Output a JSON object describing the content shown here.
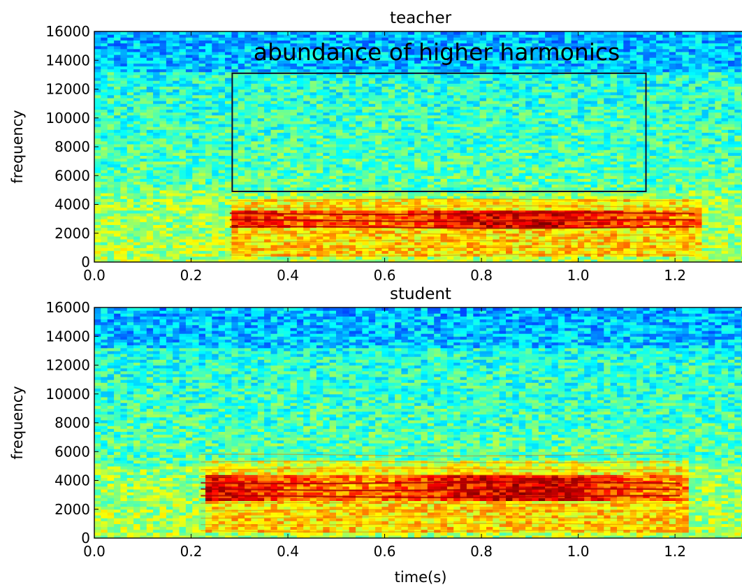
{
  "chart_data": [
    {
      "type": "heatmap",
      "title": "teacher",
      "xlabel": "",
      "ylabel": "frequency",
      "xlim": [
        0.0,
        1.35
      ],
      "ylim": [
        0,
        16000
      ],
      "x_ticks": [
        0.0,
        0.2,
        0.4,
        0.6,
        0.8,
        1.0,
        1.2
      ],
      "x_tick_labels": [
        "0.0",
        "0.2",
        "0.4",
        "0.6",
        "0.8",
        "1.0",
        "1.2"
      ],
      "y_ticks": [
        0,
        2000,
        4000,
        6000,
        8000,
        10000,
        12000,
        14000,
        16000
      ],
      "y_tick_labels": [
        "0",
        "2000",
        "4000",
        "6000",
        "8000",
        "10000",
        "12000",
        "14000",
        "16000"
      ],
      "colormap": "jet",
      "voiced_interval": [
        0.28,
        1.25
      ],
      "harmonic_band": [
        300,
        4200
      ],
      "dominant_band": [
        2300,
        3500
      ],
      "annotation": {
        "text": "abundance of higher harmonics",
        "box_x": [
          0.285,
          1.14
        ],
        "box_y": [
          4900,
          13100
        ]
      }
    },
    {
      "type": "heatmap",
      "title": "student",
      "xlabel": "time(s)",
      "ylabel": "frequency",
      "xlim": [
        0.0,
        1.35
      ],
      "ylim": [
        0,
        16000
      ],
      "x_ticks": [
        0.0,
        0.2,
        0.4,
        0.6,
        0.8,
        1.0,
        1.2
      ],
      "x_tick_labels": [
        "0.0",
        "0.2",
        "0.4",
        "0.6",
        "0.8",
        "1.0",
        "1.2"
      ],
      "y_ticks": [
        0,
        2000,
        4000,
        6000,
        8000,
        10000,
        12000,
        14000,
        16000
      ],
      "y_tick_labels": [
        "0",
        "2000",
        "4000",
        "6000",
        "8000",
        "10000",
        "12000",
        "14000",
        "16000"
      ],
      "colormap": "jet",
      "voiced_interval": [
        0.22,
        1.22
      ],
      "harmonic_band": [
        300,
        5200
      ],
      "dominant_band": [
        2600,
        4200
      ]
    }
  ]
}
